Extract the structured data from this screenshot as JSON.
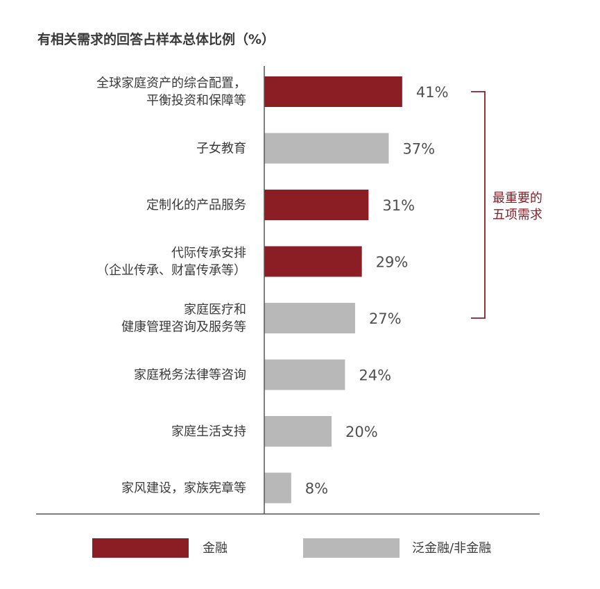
{
  "chart_data": {
    "type": "bar",
    "orientation": "horizontal",
    "title": "有相关需求的回答占样本总体比例（%）",
    "categories": [
      [
        "全球家庭资产的综合配置，",
        "平衡投资和保障等"
      ],
      [
        "子女教育"
      ],
      [
        "定制化的产品服务"
      ],
      [
        "代际传承安排",
        "（企业传承、财富传承等）"
      ],
      [
        "家庭医疗和",
        "健康管理咨询及服务等"
      ],
      [
        "家庭税务法律等咨询"
      ],
      [
        "家庭生活支持"
      ],
      [
        "家风建设，家族宪章等"
      ]
    ],
    "values": [
      41,
      37,
      31,
      29,
      27,
      24,
      20,
      8
    ],
    "value_labels": [
      "41%",
      "37%",
      "31%",
      "29%",
      "27%",
      "24%",
      "20%",
      "8%"
    ],
    "groups": [
      "finance",
      "nonfinance",
      "finance",
      "finance",
      "nonfinance",
      "nonfinance",
      "nonfinance",
      "nonfinance"
    ],
    "xlim": [
      0,
      80
    ],
    "grid": false,
    "legend": [
      {
        "key": "finance",
        "label": "金融",
        "color": "#8b1d24"
      },
      {
        "key": "nonfinance",
        "label": "泛金融/非金融",
        "color": "#b8b8b8"
      }
    ],
    "legend_position": "bottom",
    "annotation": {
      "lines": [
        "最重要的",
        "五项需求"
      ],
      "covers_first_n": 5,
      "color": "#8b1d24"
    }
  }
}
